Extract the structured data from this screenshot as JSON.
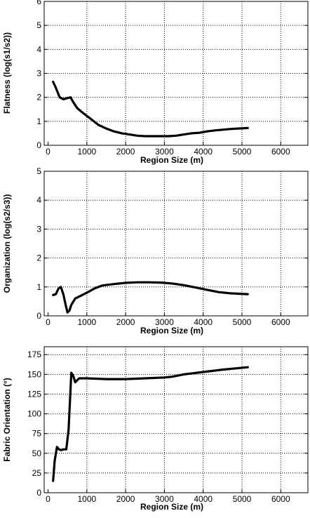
{
  "chart_data": [
    {
      "type": "line",
      "xlabel": "Region Size (m)",
      "ylabel": "Flatness (log(s1/s2))",
      "xlim": [
        -100,
        6700
      ],
      "ylim": [
        0,
        6
      ],
      "x_ticks": [
        "0",
        "1000",
        "2000",
        "3000",
        "4000",
        "5000",
        "6000"
      ],
      "y_ticks": [
        "0",
        "1",
        "2",
        "3",
        "4",
        "5",
        "6"
      ],
      "grid": true,
      "series": [
        {
          "x": [
            130,
            200,
            300,
            400,
            500,
            580,
            650,
            750,
            900,
            1100,
            1300,
            1500,
            1700,
            1900,
            2100,
            2300,
            2500,
            2700,
            2900,
            3100,
            3300,
            3500,
            3700,
            3900,
            4100,
            4300,
            4500,
            4700,
            4900,
            5150
          ],
          "y": [
            2.65,
            2.4,
            2.0,
            1.92,
            1.97,
            2.0,
            1.8,
            1.55,
            1.35,
            1.1,
            0.85,
            0.7,
            0.58,
            0.5,
            0.45,
            0.4,
            0.38,
            0.38,
            0.38,
            0.38,
            0.4,
            0.45,
            0.5,
            0.52,
            0.58,
            0.62,
            0.65,
            0.68,
            0.7,
            0.72
          ]
        }
      ]
    },
    {
      "type": "line",
      "xlabel": "Region Size (m)",
      "ylabel": "Organization (log(s2/s3))",
      "xlim": [
        -100,
        6700
      ],
      "ylim": [
        0,
        5
      ],
      "x_ticks": [
        "0",
        "1000",
        "2000",
        "3000",
        "4000",
        "5000",
        "6000"
      ],
      "y_ticks": [
        "0",
        "1",
        "2",
        "3",
        "4",
        "5"
      ],
      "grid": true,
      "series": [
        {
          "x": [
            130,
            200,
            270,
            330,
            400,
            450,
            500,
            550,
            600,
            700,
            850,
            1000,
            1200,
            1400,
            1700,
            2000,
            2300,
            2600,
            2900,
            3200,
            3500,
            3800,
            4100,
            4400,
            4700,
            5150
          ],
          "y": [
            0.72,
            0.75,
            0.95,
            1.0,
            0.72,
            0.4,
            0.12,
            0.18,
            0.38,
            0.6,
            0.7,
            0.8,
            0.95,
            1.05,
            1.1,
            1.14,
            1.16,
            1.16,
            1.15,
            1.12,
            1.06,
            0.98,
            0.9,
            0.82,
            0.78,
            0.75
          ]
        }
      ]
    },
    {
      "type": "line",
      "xlabel": "Region Size (m)",
      "ylabel": "Fabric Orientation (°)",
      "xlim": [
        -100,
        6700
      ],
      "ylim": [
        0,
        185
      ],
      "x_ticks": [
        "0",
        "1000",
        "2000",
        "3000",
        "4000",
        "5000",
        "6000"
      ],
      "y_ticks": [
        "0",
        "25",
        "50",
        "75",
        "100",
        "125",
        "150",
        "175"
      ],
      "grid": true,
      "series": [
        {
          "x": [
            130,
            170,
            230,
            280,
            330,
            400,
            470,
            530,
            600,
            650,
            700,
            800,
            1000,
            1500,
            2000,
            2500,
            3000,
            3200,
            3500,
            4000,
            4500,
            5150
          ],
          "y": [
            15,
            40,
            58,
            55,
            54,
            55,
            55,
            80,
            152,
            148,
            140,
            145,
            145,
            144,
            144,
            145,
            146,
            147,
            150,
            153,
            156,
            159
          ]
        }
      ]
    }
  ]
}
